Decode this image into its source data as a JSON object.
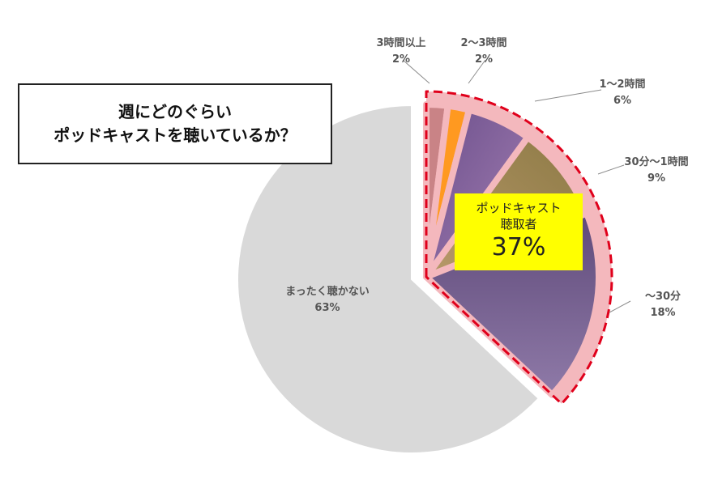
{
  "title": {
    "line1": "週にどのぐらい",
    "line2": "ポッドキャストを聴いているか？"
  },
  "callout": {
    "line1": "ポッドキャスト",
    "line2": "聴取者",
    "value": "37%"
  },
  "colors": {
    "non_listener": "#d9d9d9",
    "highlight_fill": "#f4b8bd",
    "highlight_border": "#e0001b",
    "callout_bg": "#ffff00"
  },
  "chart_data": {
    "type": "pie",
    "start": "12 o'clock, clockwise",
    "slices": [
      {
        "label": "3時間以上",
        "value": 2,
        "display": "2%",
        "color": "#c98386"
      },
      {
        "label": "2〜3時間",
        "value": 2,
        "display": "2%",
        "color": "#ff9920"
      },
      {
        "label": "1〜2時間",
        "value": 6,
        "display": "6%",
        "color": "#7a5a96"
      },
      {
        "label": "30分〜1時間",
        "value": 9,
        "display": "9%",
        "color": "#a28a52"
      },
      {
        "label": "〜30分",
        "value": 18,
        "display": "18%",
        "color": "#6e5a88"
      },
      {
        "label": "まったく聴かない",
        "value": 63,
        "display": "63%",
        "color": "#d9d9d9"
      }
    ],
    "highlight": {
      "label": "ポッドキャスト聴取者",
      "value": 37,
      "display": "37%"
    }
  }
}
